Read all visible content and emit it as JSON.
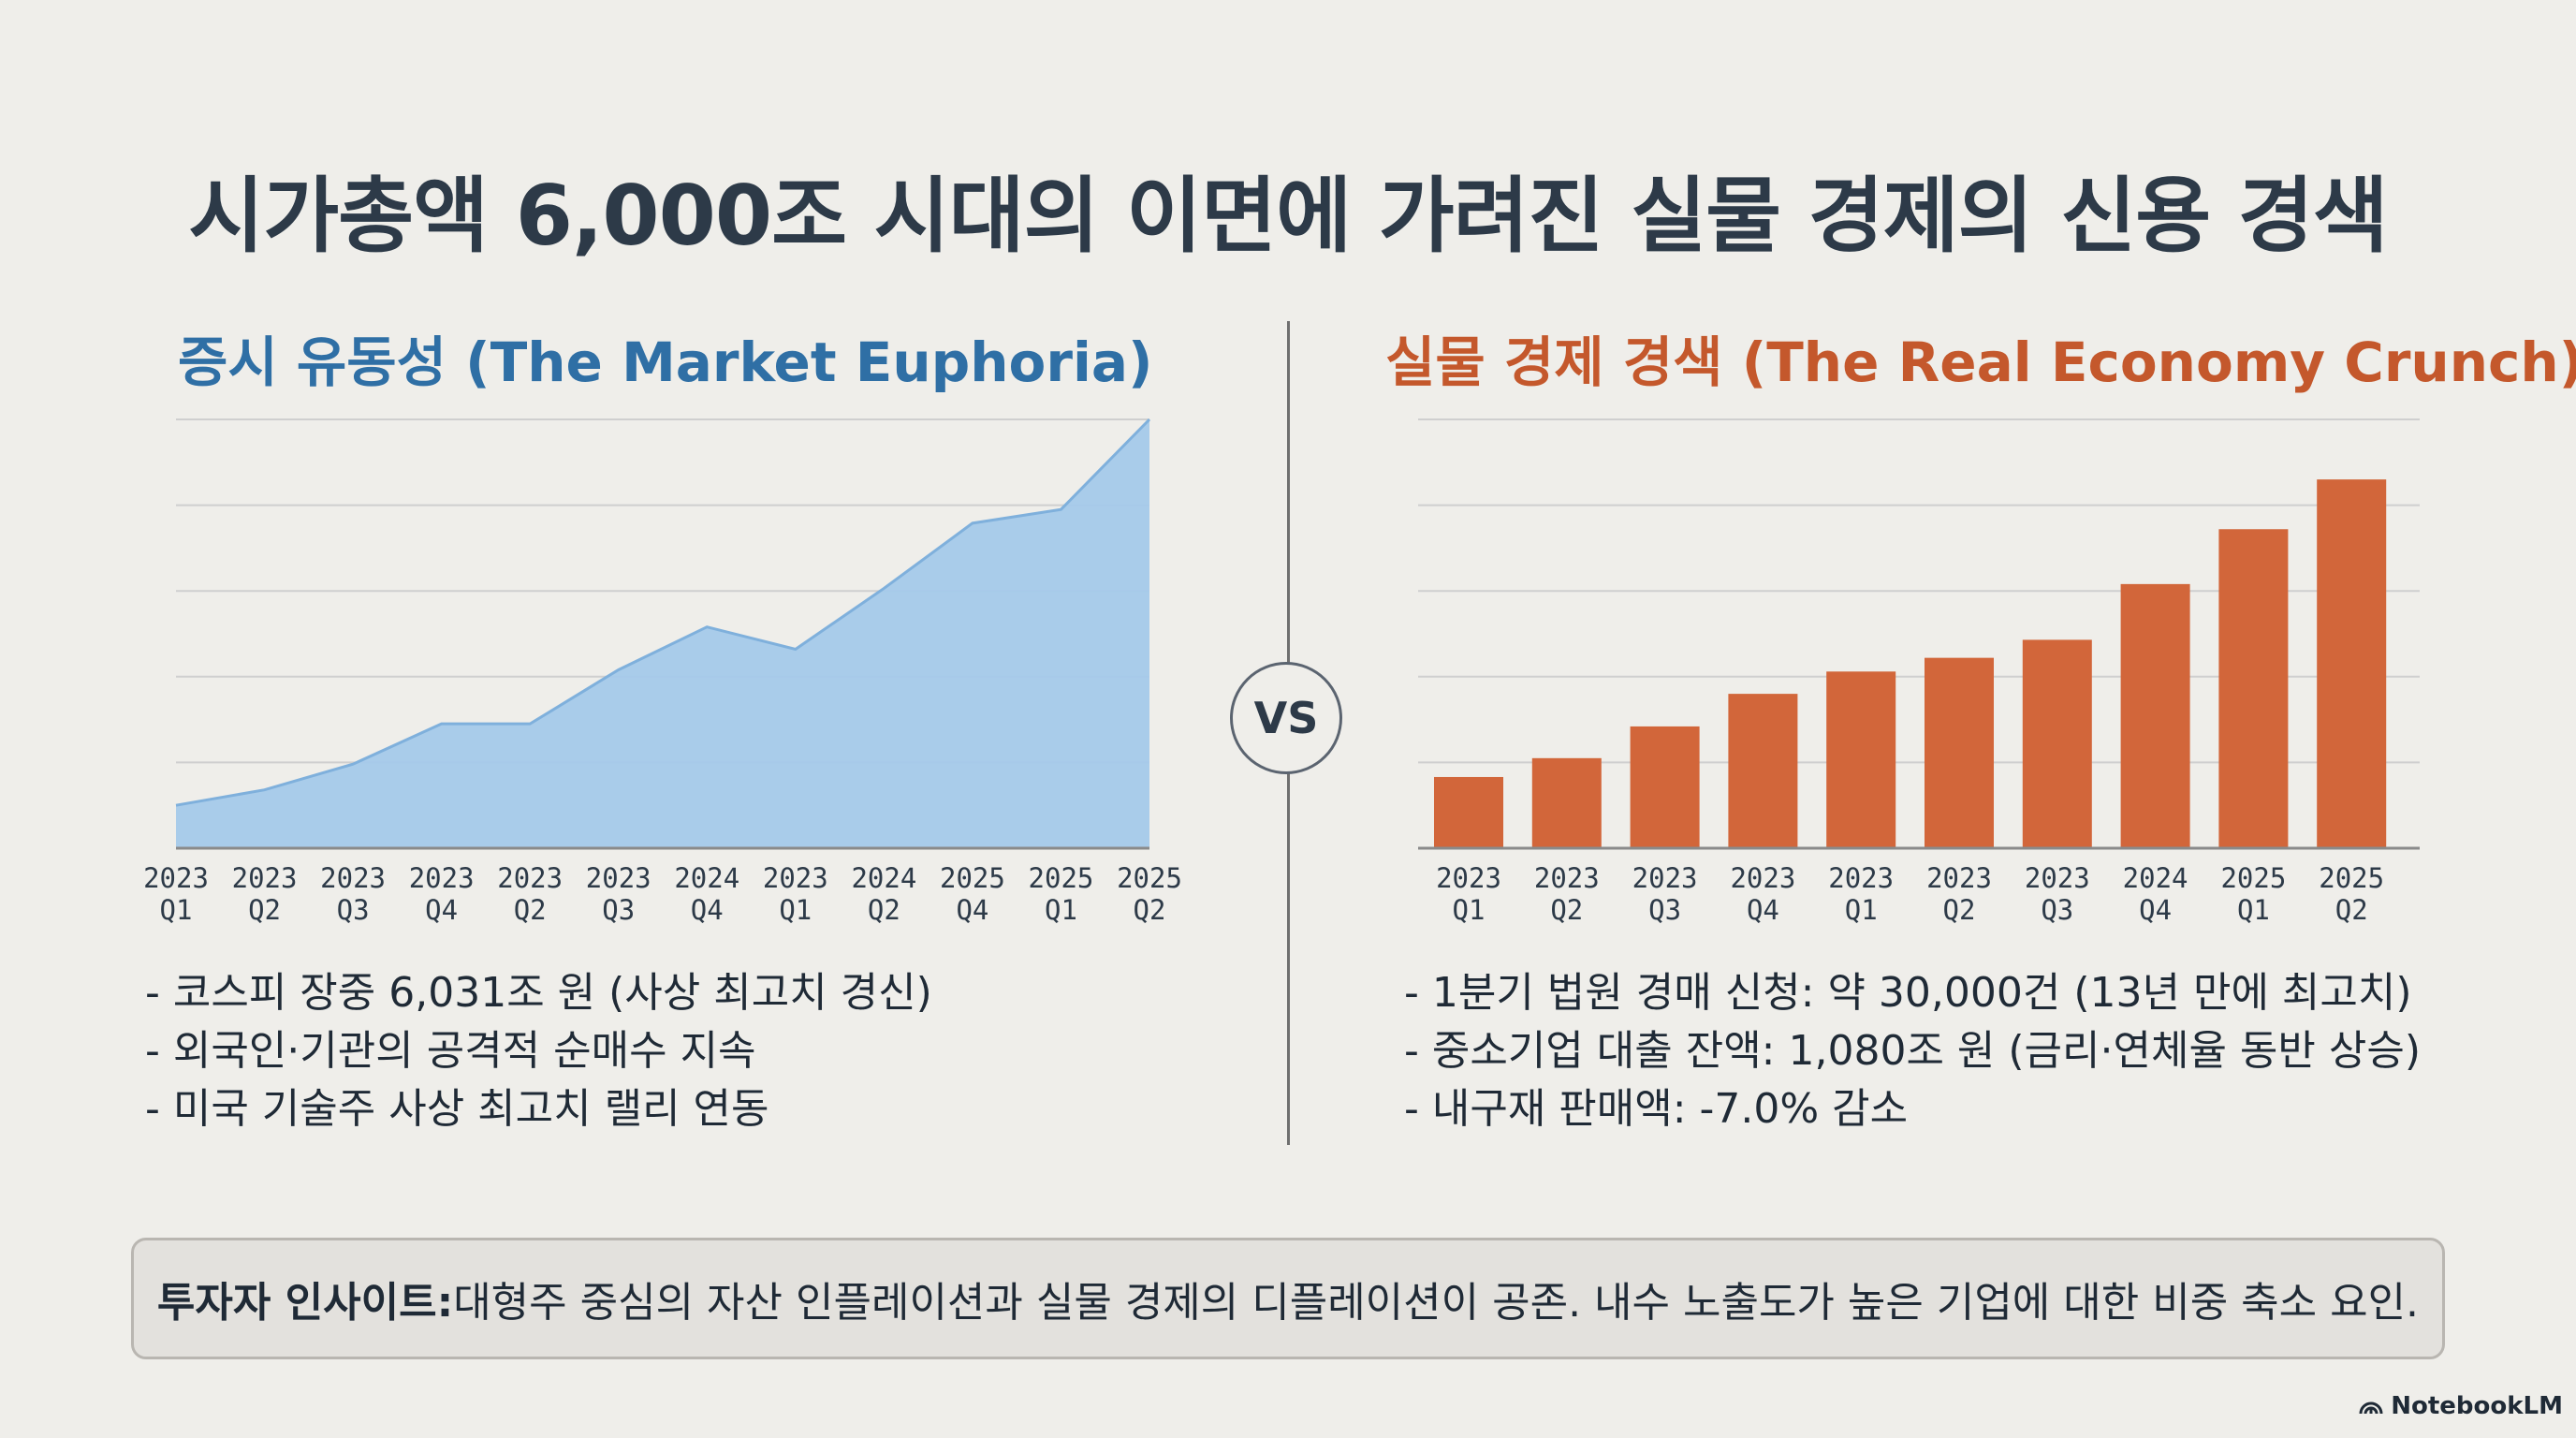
{
  "title": "시가총액 6,000조 시대의 이면에 가려진 실물 경제의 신용 경색",
  "left_panel": {
    "title": "증시 유동성 (The Market Euphoria)",
    "bullets": [
      "- 코스피 장중 6,031조 원 (사상 최고치 경신)",
      "- 외국인·기관의 공격적 순매수 지속",
      "- 미국 기술주 사상 최고치 랠리 연동"
    ]
  },
  "right_panel": {
    "title": "실물 경제 경색 (The Real Economy Crunch)",
    "bullets": [
      "- 1분기 법원 경매 신청: 약 30,000건 (13년 만에 최고치)",
      "- 중소기업 대출 잔액: 1,080조 원 (금리·연체율 동반 상승)",
      "- 내구재 판매액: -7.0% 감소"
    ]
  },
  "vs_label": "VS",
  "insight": {
    "label": "투자자 인사이트:",
    "text": " 대형주 중심의 자산 인플레이션과 실물 경제의 디플레이션이 공존. 내수 노출도가 높은 기업에 대한 비중 축소 요인."
  },
  "brand": "NotebookLM",
  "colors": {
    "area_fill": "#a4c9ea",
    "area_line": "#7fb0dc",
    "bar_fill": "#d2663a",
    "grid": "#cfcfcf",
    "axis": "#8a8a8a"
  },
  "chart_data": [
    {
      "type": "area",
      "title": "증시 유동성 (The Market Euphoria)",
      "categories": [
        [
          "2023",
          "Q1"
        ],
        [
          "2023",
          "Q2"
        ],
        [
          "2023",
          "Q3"
        ],
        [
          "2023",
          "Q4"
        ],
        [
          "2023",
          "Q2"
        ],
        [
          "2023",
          "Q3"
        ],
        [
          "2024",
          "Q4"
        ],
        [
          "2023",
          "Q1"
        ],
        [
          "2024",
          "Q2"
        ],
        [
          "2025",
          "Q4"
        ],
        [
          "2025",
          "Q1"
        ],
        [
          "2025",
          "Q2"
        ]
      ],
      "x_points": [
        0,
        1,
        2,
        3,
        4,
        5,
        6,
        7,
        8,
        9,
        10,
        11
      ],
      "extra_points": [
        [
          3.95,
          1.45
        ],
        [
          7.0,
          2.3
        ],
        [
          9.05,
          3.8
        ]
      ],
      "values": [
        0.5,
        0.68,
        0.98,
        1.45,
        1.45,
        2.08,
        2.58,
        2.32,
        3.03,
        3.79,
        3.95,
        5.0
      ],
      "ylim": [
        0,
        5
      ],
      "grid": true,
      "xlabel": "",
      "ylabel": ""
    },
    {
      "type": "bar",
      "title": "실물 경제 경색 (The Real Economy Crunch)",
      "categories": [
        [
          "2023",
          "Q1"
        ],
        [
          "2023",
          "Q2"
        ],
        [
          "2023",
          "Q3"
        ],
        [
          "2023",
          "Q4"
        ],
        [
          "2023",
          "Q1"
        ],
        [
          "2023",
          "Q2"
        ],
        [
          "2023",
          "Q3"
        ],
        [
          "2024",
          "Q4"
        ],
        [
          "2025",
          "Q1"
        ],
        [
          "2025",
          "Q2"
        ]
      ],
      "values": [
        0.83,
        1.05,
        1.42,
        1.8,
        2.06,
        2.22,
        2.43,
        3.08,
        3.72,
        4.3
      ],
      "ylim": [
        0,
        5
      ],
      "grid": true,
      "xlabel": "",
      "ylabel": ""
    }
  ]
}
